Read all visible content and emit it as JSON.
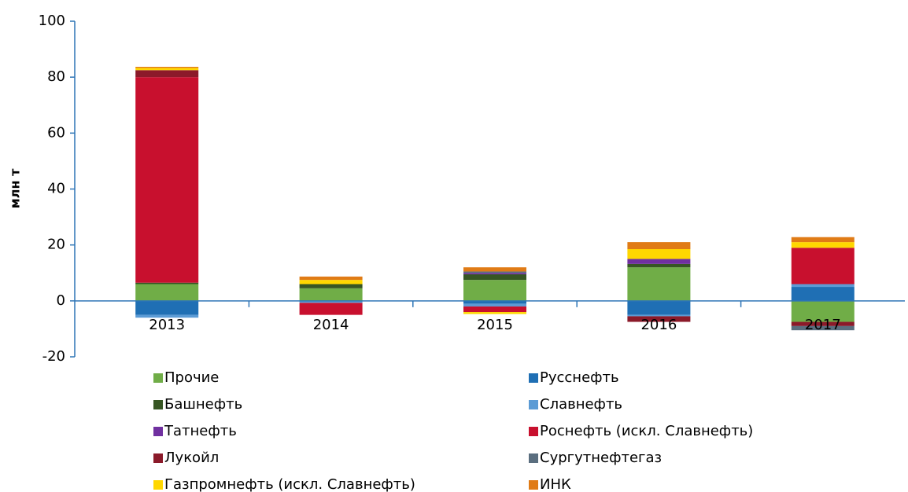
{
  "chart_data": {
    "type": "bar",
    "stacked": true,
    "y_axis_label": "млн т",
    "categories": [
      "2013",
      "2014",
      "2015",
      "2016",
      "2017"
    ],
    "ylim": [
      -20,
      100
    ],
    "yticks": [
      -20,
      0,
      20,
      40,
      60,
      80,
      100
    ],
    "series": [
      {
        "name": "Прочие",
        "color": "#70ad47",
        "values": [
          6,
          4.5,
          7.5,
          12,
          -7.5
        ]
      },
      {
        "name": "Русснефть",
        "color": "#1f6fb4",
        "values": [
          -5,
          0,
          -1,
          -5,
          5
        ]
      },
      {
        "name": "Башнефть",
        "color": "#375623",
        "values": [
          0.5,
          1.5,
          2,
          1.2,
          0
        ]
      },
      {
        "name": "Славнефть",
        "color": "#5b9bd5",
        "values": [
          -1,
          -0.7,
          -1,
          -0.5,
          1
        ]
      },
      {
        "name": "Татнефть",
        "color": "#7030a0",
        "values": [
          0,
          0,
          0.5,
          1.8,
          0
        ]
      },
      {
        "name": "Роснефть (искл. Славнефть)",
        "color": "#c8102e",
        "values": [
          73.5,
          -4.3,
          -2,
          0,
          13
        ]
      },
      {
        "name": "Лукойл",
        "color": "#8b1a2a",
        "values": [
          2.5,
          0,
          0,
          -2,
          -1.5
        ]
      },
      {
        "name": "Сургутнефтегаз",
        "color": "#5a6e7f",
        "values": [
          0,
          0,
          0.5,
          0,
          -1.5
        ]
      },
      {
        "name": "Газпромнефть (искл. Славнефть)",
        "color": "#ffd700",
        "values": [
          0.8,
          1.5,
          -0.7,
          3.5,
          2
        ]
      },
      {
        "name": "ИНК",
        "color": "#e07b16",
        "values": [
          0.4,
          1.2,
          1.5,
          2.5,
          1.8
        ]
      }
    ]
  }
}
